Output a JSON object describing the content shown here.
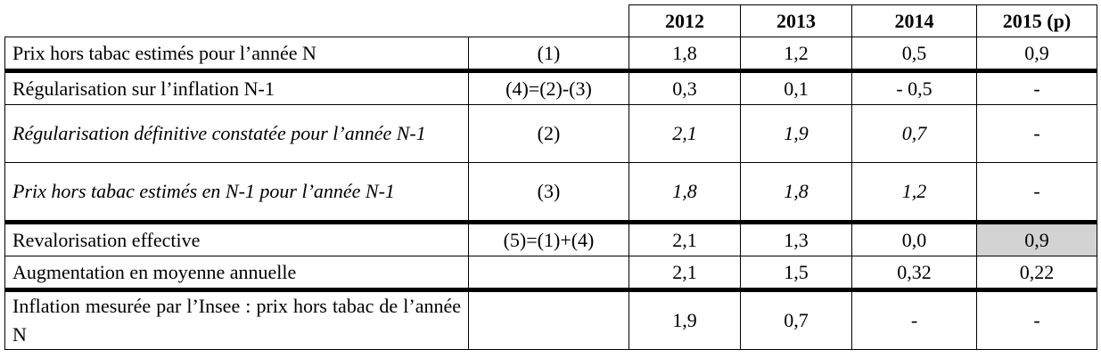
{
  "header": {
    "years": [
      "2012",
      "2013",
      "2014",
      "2015 (p)"
    ]
  },
  "rows": [
    {
      "label": "Prix hors tabac estimés pour l’année N",
      "formula": "(1)",
      "values": [
        "1,8",
        "1,2",
        "0,5",
        "0,9"
      ]
    },
    {
      "label": "Régularisation sur l’inflation N-1",
      "formula": "(4)=(2)-(3)",
      "values": [
        "0,3",
        "0,1",
        "- 0,5",
        "-"
      ]
    },
    {
      "label": "Régularisation définitive constatée pour l’année N-1",
      "formula": "(2)",
      "values": [
        "2,1",
        "1,9",
        "0,7",
        "-"
      ]
    },
    {
      "label": "Prix hors tabac estimés en N-1 pour l’année N-1",
      "formula": "(3)",
      "values": [
        "1,8",
        "1,8",
        "1,2",
        "-"
      ]
    },
    {
      "label": "Revalorisation effective",
      "formula": "(5)=(1)+(4)",
      "values": [
        "2,1",
        "1,3",
        "0,0",
        "0,9"
      ]
    },
    {
      "label": "Augmentation en moyenne annuelle",
      "formula": "",
      "values": [
        "2,1",
        "1,5",
        "0,32",
        "0,22"
      ]
    },
    {
      "label": "Inflation mesurée par l’Insee : prix hors tabac de l’année N",
      "formula": "",
      "values": [
        "1,9",
        "0,7",
        "-",
        "-"
      ]
    }
  ],
  "colors": {
    "highlight": "#d3d3d3"
  }
}
